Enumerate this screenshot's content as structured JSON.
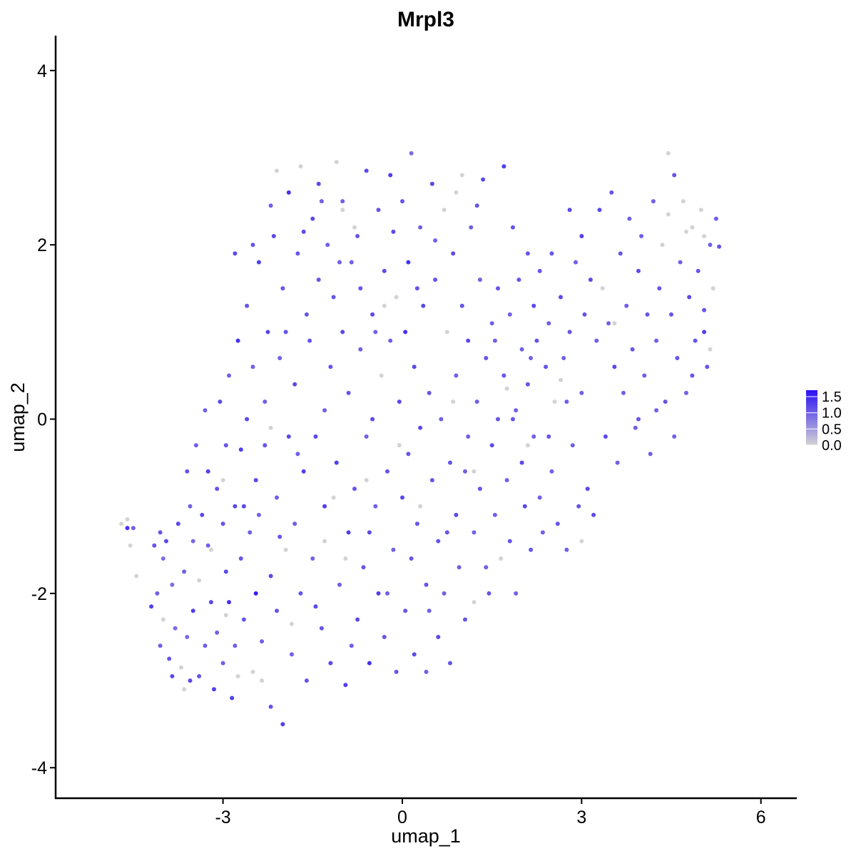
{
  "chart_data": {
    "type": "scatter",
    "title": "Mrpl3",
    "xlabel": "umap_1",
    "ylabel": "umap_2",
    "xlim": [
      -5.8,
      6.6
    ],
    "ylim": [
      -4.35,
      4.4
    ],
    "xticks": [
      -3,
      0,
      3,
      6
    ],
    "xtick_labels": [
      "-3",
      "0",
      "3",
      "6"
    ],
    "yticks": [
      -4,
      -2,
      0,
      2,
      4
    ],
    "ytick_labels": [
      "-4",
      "-2",
      "0",
      "2",
      "4"
    ],
    "grid": false,
    "legend_placement": "right",
    "color_scale": {
      "low": "#d3d3d3",
      "high": "#2a10f5",
      "min": 0,
      "max": 1.7,
      "ticks": [
        1.5,
        1.0,
        0.5,
        0.0
      ],
      "tick_labels": [
        "1.5",
        "1.0",
        "0.5",
        "0.0"
      ]
    },
    "points": [
      [
        -4.7,
        -1.2,
        0.0
      ],
      [
        -4.6,
        -1.25,
        1.4
      ],
      [
        -4.6,
        -1.15,
        0.0
      ],
      [
        -4.55,
        -1.45,
        0.0
      ],
      [
        -4.5,
        -1.25,
        1.0
      ],
      [
        -4.45,
        -1.8,
        0.0
      ],
      [
        -4.2,
        -2.15,
        1.3
      ],
      [
        -4.15,
        -1.45,
        1.1
      ],
      [
        -4.1,
        -2.0,
        1.0
      ],
      [
        -4.05,
        -2.6,
        1.0
      ],
      [
        -4.0,
        -1.6,
        0.9
      ],
      [
        -4.0,
        -2.3,
        0.0
      ],
      [
        -3.95,
        -1.4,
        1.2
      ],
      [
        -3.9,
        -2.75,
        1.1
      ],
      [
        -3.85,
        -1.9,
        0.9
      ],
      [
        -3.8,
        -2.4,
        0.9
      ],
      [
        -3.75,
        -1.2,
        1.2
      ],
      [
        -3.7,
        -2.85,
        0.0
      ],
      [
        -3.65,
        -1.75,
        1.0
      ],
      [
        -3.6,
        -2.5,
        0.9
      ],
      [
        -3.6,
        -0.6,
        1.1
      ],
      [
        -3.55,
        -3.0,
        1.2
      ],
      [
        -3.5,
        -1.4,
        0.9
      ],
      [
        -3.5,
        -2.2,
        1.3
      ],
      [
        -3.45,
        -0.3,
        1.0
      ],
      [
        -3.4,
        -1.85,
        0.0
      ],
      [
        -3.4,
        -2.95,
        1.1
      ],
      [
        -3.35,
        -1.1,
        1.2
      ],
      [
        -3.3,
        -2.6,
        1.0
      ],
      [
        -3.3,
        0.1,
        1.0
      ],
      [
        -3.25,
        -0.6,
        1.3
      ],
      [
        -3.2,
        -2.1,
        1.2
      ],
      [
        -3.2,
        -1.5,
        0.0
      ],
      [
        -3.15,
        -3.1,
        1.3
      ],
      [
        -3.1,
        -0.8,
        1.1
      ],
      [
        -3.1,
        -2.45,
        1.0
      ],
      [
        -3.05,
        0.2,
        1.2
      ],
      [
        -3.0,
        -1.2,
        1.1
      ],
      [
        -3.0,
        -2.8,
        1.0
      ],
      [
        -2.95,
        -1.75,
        1.2
      ],
      [
        -2.95,
        -0.3,
        1.1
      ],
      [
        -2.9,
        -2.1,
        1.4
      ],
      [
        -2.9,
        0.5,
        1.0
      ],
      [
        -2.85,
        -3.2,
        1.3
      ],
      [
        -2.8,
        -1.0,
        1.2
      ],
      [
        -2.8,
        -2.6,
        1.0
      ],
      [
        -2.75,
        0.9,
        1.4
      ],
      [
        -2.7,
        -0.35,
        1.3
      ],
      [
        -2.7,
        -1.6,
        1.1
      ],
      [
        -2.65,
        -2.3,
        1.1
      ],
      [
        -2.6,
        0.0,
        1.2
      ],
      [
        -2.6,
        1.3,
        1.1
      ],
      [
        -2.55,
        -1.3,
        1.0
      ],
      [
        -2.5,
        -2.9,
        0.0
      ],
      [
        -2.5,
        0.6,
        1.0
      ],
      [
        -2.45,
        -0.7,
        1.2
      ],
      [
        -2.45,
        -2.0,
        1.6
      ],
      [
        -2.4,
        1.8,
        1.3
      ],
      [
        -2.4,
        -1.1,
        1.0
      ],
      [
        -2.35,
        -2.55,
        1.0
      ],
      [
        -2.3,
        0.2,
        1.0
      ],
      [
        -2.3,
        -0.3,
        1.1
      ],
      [
        -2.25,
        1.0,
        1.2
      ],
      [
        -2.2,
        -1.8,
        1.2
      ],
      [
        -2.2,
        -3.3,
        1.1
      ],
      [
        -2.15,
        2.1,
        1.2
      ],
      [
        -2.1,
        -0.9,
        1.0
      ],
      [
        -2.1,
        -2.2,
        1.1
      ],
      [
        -2.05,
        0.7,
        1.0
      ],
      [
        -2.0,
        1.5,
        1.1
      ],
      [
        -2.0,
        -3.5,
        1.3
      ],
      [
        -1.95,
        -1.5,
        0.0
      ],
      [
        -1.9,
        -0.2,
        1.2
      ],
      [
        -1.9,
        2.6,
        1.4
      ],
      [
        -1.85,
        -2.7,
        1.0
      ],
      [
        -1.8,
        0.4,
        1.2
      ],
      [
        -1.8,
        -1.2,
        1.0
      ],
      [
        -1.75,
        1.9,
        1.1
      ],
      [
        -1.7,
        2.9,
        0.0
      ],
      [
        -1.7,
        -2.0,
        1.1
      ],
      [
        -1.65,
        -0.6,
        1.3
      ],
      [
        -1.6,
        1.2,
        1.1
      ],
      [
        -1.6,
        -3.0,
        1.1
      ],
      [
        -1.55,
        0.9,
        1.1
      ],
      [
        -1.5,
        2.3,
        1.2
      ],
      [
        -1.5,
        -1.6,
        1.0
      ],
      [
        -1.45,
        -0.2,
        1.2
      ],
      [
        -1.4,
        1.6,
        1.1
      ],
      [
        -1.4,
        2.7,
        1.2
      ],
      [
        -1.35,
        -2.4,
        1.1
      ],
      [
        -1.3,
        0.1,
        1.0
      ],
      [
        -1.3,
        -1.0,
        1.3
      ],
      [
        -1.25,
        2.0,
        1.0
      ],
      [
        -1.2,
        -2.8,
        1.2
      ],
      [
        -1.2,
        0.6,
        1.1
      ],
      [
        -1.15,
        1.4,
        1.1
      ],
      [
        -1.1,
        -0.5,
        1.3
      ],
      [
        -1.1,
        2.95,
        0.0
      ],
      [
        -1.05,
        -1.9,
        1.0
      ],
      [
        -1.0,
        1.0,
        1.2
      ],
      [
        -1.0,
        2.5,
        1.0
      ],
      [
        -0.95,
        -3.05,
        1.3
      ],
      [
        -0.9,
        0.3,
        1.1
      ],
      [
        -0.9,
        -1.3,
        1.3
      ],
      [
        -0.85,
        1.8,
        1.0
      ],
      [
        -0.8,
        -0.8,
        1.1
      ],
      [
        -0.8,
        2.2,
        0.0
      ],
      [
        -0.75,
        -2.3,
        1.2
      ],
      [
        -0.7,
        0.8,
        1.0
      ],
      [
        -0.7,
        1.5,
        1.1
      ],
      [
        -0.65,
        -1.7,
        1.1
      ],
      [
        -0.6,
        2.85,
        1.2
      ],
      [
        -0.6,
        -0.2,
        1.0
      ],
      [
        -0.55,
        -2.8,
        1.4
      ],
      [
        -0.5,
        1.2,
        1.2
      ],
      [
        -0.5,
        0.0,
        1.2
      ],
      [
        -0.45,
        -1.0,
        1.0
      ],
      [
        -0.4,
        2.4,
        1.1
      ],
      [
        -0.4,
        -2.0,
        1.3
      ],
      [
        -0.35,
        0.5,
        0.0
      ],
      [
        -0.3,
        1.7,
        1.2
      ],
      [
        -0.3,
        -2.5,
        1.1
      ],
      [
        -0.25,
        -0.6,
        1.1
      ],
      [
        -0.2,
        2.8,
        1.3
      ],
      [
        -0.2,
        0.9,
        1.0
      ],
      [
        -0.15,
        -1.5,
        1.0
      ],
      [
        -0.1,
        1.4,
        0.0
      ],
      [
        -0.1,
        -2.9,
        1.1
      ],
      [
        -0.05,
        0.2,
        1.2
      ],
      [
        0.0,
        2.5,
        1.1
      ],
      [
        0.0,
        -0.9,
        1.2
      ],
      [
        0.05,
        -2.2,
        1.1
      ],
      [
        0.05,
        1.0,
        1.4
      ],
      [
        0.1,
        1.8,
        1.4
      ],
      [
        0.1,
        -0.4,
        1.1
      ],
      [
        0.15,
        3.05,
        0.9
      ],
      [
        0.2,
        -2.7,
        1.2
      ],
      [
        0.2,
        0.6,
        1.2
      ],
      [
        0.25,
        -1.2,
        1.1
      ],
      [
        0.3,
        2.2,
        1.0
      ],
      [
        0.3,
        -0.1,
        1.2
      ],
      [
        0.35,
        1.3,
        1.2
      ],
      [
        0.4,
        -1.9,
        1.1
      ],
      [
        0.4,
        -2.9,
        1.0
      ],
      [
        0.45,
        0.3,
        1.1
      ],
      [
        0.5,
        2.7,
        1.2
      ],
      [
        0.5,
        -0.7,
        1.1
      ],
      [
        0.55,
        1.6,
        1.1
      ],
      [
        0.6,
        -1.4,
        1.1
      ],
      [
        0.6,
        -2.5,
        1.2
      ],
      [
        0.65,
        0.0,
        1.0
      ],
      [
        0.7,
        2.4,
        0.0
      ],
      [
        0.7,
        -2.0,
        1.0
      ],
      [
        0.75,
        1.0,
        0.0
      ],
      [
        0.8,
        -0.5,
        1.1
      ],
      [
        0.8,
        -2.8,
        1.1
      ],
      [
        0.85,
        1.9,
        1.2
      ],
      [
        0.9,
        0.5,
        1.0
      ],
      [
        0.9,
        -1.1,
        1.2
      ],
      [
        0.95,
        -1.7,
        1.0
      ],
      [
        1.0,
        2.8,
        0.0
      ],
      [
        1.0,
        1.3,
        1.1
      ],
      [
        1.05,
        -2.3,
        1.1
      ],
      [
        1.1,
        -0.2,
        1.0
      ],
      [
        1.1,
        0.9,
        1.2
      ],
      [
        1.15,
        2.2,
        1.0
      ],
      [
        1.2,
        -1.3,
        1.0
      ],
      [
        1.2,
        -2.1,
        0.0
      ],
      [
        1.25,
        0.2,
        1.0
      ],
      [
        1.3,
        1.6,
        1.0
      ],
      [
        1.3,
        -0.8,
        1.1
      ],
      [
        1.35,
        2.75,
        1.2
      ],
      [
        1.4,
        -1.7,
        1.0
      ],
      [
        1.4,
        0.7,
        1.1
      ],
      [
        1.45,
        -2.0,
        1.1
      ],
      [
        1.5,
        1.1,
        1.0
      ],
      [
        1.5,
        -0.3,
        1.2
      ],
      [
        1.55,
        -1.1,
        1.0
      ],
      [
        1.6,
        1.5,
        1.1
      ],
      [
        1.6,
        0.0,
        1.1
      ],
      [
        1.65,
        -1.6,
        0.0
      ],
      [
        1.7,
        2.9,
        1.3
      ],
      [
        1.7,
        0.5,
        1.1
      ],
      [
        1.75,
        -0.7,
        1.0
      ],
      [
        1.8,
        1.2,
        1.0
      ],
      [
        1.8,
        -1.4,
        1.1
      ],
      [
        1.85,
        2.2,
        1.1
      ],
      [
        1.9,
        0.1,
        1.0
      ],
      [
        1.9,
        -2.0,
        1.0
      ],
      [
        1.95,
        1.6,
        1.1
      ],
      [
        2.0,
        -0.5,
        1.2
      ],
      [
        2.0,
        0.8,
        1.0
      ],
      [
        2.05,
        -1.0,
        1.2
      ],
      [
        2.1,
        1.9,
        1.1
      ],
      [
        2.1,
        0.4,
        1.1
      ],
      [
        2.15,
        -1.5,
        1.1
      ],
      [
        2.2,
        1.3,
        1.2
      ],
      [
        2.2,
        -0.2,
        1.0
      ],
      [
        2.25,
        0.9,
        1.1
      ],
      [
        2.3,
        -0.9,
        1.0
      ],
      [
        2.3,
        1.7,
        1.1
      ],
      [
        2.35,
        -1.3,
        1.0
      ],
      [
        2.4,
        0.6,
        1.1
      ],
      [
        2.45,
        1.1,
        1.0
      ],
      [
        2.5,
        -0.6,
        1.0
      ],
      [
        2.5,
        1.9,
        1.1
      ],
      [
        2.55,
        0.2,
        0.0
      ],
      [
        2.6,
        -1.2,
        1.1
      ],
      [
        2.65,
        1.4,
        1.2
      ],
      [
        2.7,
        0.7,
        1.0
      ],
      [
        2.75,
        -1.5,
        1.0
      ],
      [
        2.8,
        2.4,
        1.2
      ],
      [
        2.8,
        1.0,
        1.1
      ],
      [
        2.85,
        -0.3,
        1.0
      ],
      [
        2.9,
        1.8,
        1.0
      ],
      [
        2.95,
        -1.0,
        1.1
      ],
      [
        3.0,
        0.3,
        1.0
      ],
      [
        3.0,
        2.1,
        1.3
      ],
      [
        3.05,
        1.2,
        1.1
      ],
      [
        3.1,
        -0.8,
        1.2
      ],
      [
        3.15,
        1.6,
        1.2
      ],
      [
        3.2,
        -1.1,
        1.2
      ],
      [
        3.25,
        0.9,
        1.0
      ],
      [
        3.3,
        2.4,
        1.2
      ],
      [
        3.35,
        1.5,
        0.0
      ],
      [
        3.4,
        -0.2,
        1.2
      ],
      [
        3.45,
        1.1,
        1.0
      ],
      [
        3.5,
        2.6,
        1.1
      ],
      [
        3.55,
        0.6,
        1.2
      ],
      [
        3.6,
        -0.5,
        1.0
      ],
      [
        3.65,
        1.9,
        1.1
      ],
      [
        3.7,
        0.3,
        1.0
      ],
      [
        3.75,
        1.3,
        1.0
      ],
      [
        3.8,
        2.3,
        1.0
      ],
      [
        3.85,
        0.8,
        1.1
      ],
      [
        3.9,
        -0.1,
        1.0
      ],
      [
        3.95,
        1.7,
        1.2
      ],
      [
        4.0,
        2.1,
        1.0
      ],
      [
        4.05,
        0.5,
        1.0
      ],
      [
        4.1,
        1.2,
        1.1
      ],
      [
        4.15,
        -0.4,
        1.0
      ],
      [
        4.2,
        2.5,
        1.0
      ],
      [
        4.25,
        0.9,
        1.0
      ],
      [
        4.3,
        1.5,
        1.1
      ],
      [
        4.35,
        2.0,
        0.0
      ],
      [
        4.4,
        0.2,
        1.1
      ],
      [
        4.45,
        3.05,
        0.0
      ],
      [
        4.5,
        1.2,
        1.1
      ],
      [
        4.55,
        2.8,
        1.1
      ],
      [
        4.6,
        0.7,
        1.1
      ],
      [
        4.65,
        1.8,
        1.0
      ],
      [
        4.7,
        2.5,
        0.0
      ],
      [
        4.75,
        0.3,
        1.0
      ],
      [
        4.8,
        1.4,
        1.2
      ],
      [
        4.85,
        2.2,
        0.0
      ],
      [
        4.9,
        0.9,
        1.1
      ],
      [
        4.95,
        1.7,
        1.1
      ],
      [
        5.0,
        2.4,
        0.0
      ],
      [
        5.05,
        1.0,
        1.3
      ],
      [
        5.1,
        0.6,
        1.1
      ],
      [
        5.15,
        2.0,
        1.0
      ],
      [
        5.2,
        1.5,
        0.0
      ],
      [
        5.25,
        2.3,
        1.0
      ],
      [
        5.3,
        1.98,
        1.1
      ],
      [
        -4.05,
        -1.3,
        1.1
      ],
      [
        -3.85,
        -2.95,
        1.2
      ],
      [
        -3.55,
        -1.0,
        1.0
      ],
      [
        -3.25,
        -1.45,
        1.0
      ],
      [
        -2.95,
        -2.25,
        0.0
      ],
      [
        -2.65,
        -1.0,
        1.2
      ],
      [
        -2.35,
        -3.0,
        0.0
      ],
      [
        -2.05,
        -1.35,
        1.1
      ],
      [
        -1.75,
        -0.4,
        1.0
      ],
      [
        -1.45,
        -2.15,
        1.2
      ],
      [
        -1.15,
        -0.9,
        0.0
      ],
      [
        -0.85,
        -2.6,
        1.0
      ],
      [
        -0.55,
        -1.3,
        1.2
      ],
      [
        -0.25,
        -2.0,
        1.0
      ],
      [
        0.15,
        -1.6,
        1.1
      ],
      [
        0.45,
        -2.2,
        1.0
      ],
      [
        0.75,
        -1.3,
        1.1
      ],
      [
        1.05,
        -0.6,
        1.0
      ],
      [
        -2.8,
        1.9,
        1.2
      ],
      [
        -2.5,
        2.0,
        1.1
      ],
      [
        -2.2,
        2.45,
        1.0
      ],
      [
        -1.95,
        1.0,
        1.1
      ],
      [
        -1.65,
        2.15,
        1.2
      ],
      [
        -1.35,
        2.5,
        1.0
      ],
      [
        -1.05,
        1.8,
        1.0
      ],
      [
        -0.75,
        2.1,
        1.1
      ],
      [
        -0.45,
        1.0,
        1.0
      ],
      [
        -0.15,
        2.15,
        1.2
      ],
      [
        0.25,
        1.5,
        1.1
      ],
      [
        0.55,
        2.05,
        1.0
      ],
      [
        1.25,
        2.45,
        1.1
      ],
      [
        1.55,
        0.9,
        1.0
      ],
      [
        1.85,
        0.0,
        1.1
      ],
      [
        2.15,
        0.7,
        1.0
      ],
      [
        2.45,
        -0.2,
        1.1
      ],
      [
        2.75,
        0.2,
        1.0
      ],
      [
        3.95,
        0.0,
        1.1
      ],
      [
        4.25,
        0.1,
        1.0
      ],
      [
        4.55,
        -0.2,
        1.0
      ],
      [
        4.85,
        0.5,
        1.1
      ],
      [
        5.15,
        0.8,
        0.0
      ],
      [
        5.05,
        1.25,
        1.1
      ],
      [
        -3.65,
        -3.1,
        0.0
      ],
      [
        -2.75,
        -2.95,
        0.0
      ],
      [
        -1.85,
        -2.35,
        0.0
      ],
      [
        -0.95,
        -1.6,
        0.0
      ],
      [
        -0.05,
        -0.3,
        0.0
      ],
      [
        0.85,
        0.2,
        0.0
      ],
      [
        1.75,
        0.35,
        0.0
      ],
      [
        2.65,
        0.45,
        0.0
      ],
      [
        3.55,
        1.1,
        0.0
      ],
      [
        4.45,
        2.35,
        0.0
      ],
      [
        4.75,
        2.15,
        0.0
      ],
      [
        5.05,
        2.1,
        0.0
      ],
      [
        -2.1,
        2.85,
        0.0
      ],
      [
        -1.0,
        2.4,
        0.0
      ],
      [
        -0.3,
        1.3,
        0.0
      ],
      [
        0.9,
        2.6,
        0.0
      ],
      [
        2.1,
        -0.3,
        0.0
      ],
      [
        3.0,
        -1.4,
        0.0
      ],
      [
        -3.0,
        -0.7,
        0.0
      ],
      [
        -2.2,
        -0.1,
        0.0
      ],
      [
        -1.3,
        -1.4,
        0.0
      ],
      [
        -0.6,
        -0.7,
        0.0
      ],
      [
        0.3,
        -1.0,
        0.0
      ],
      [
        1.2,
        -0.6,
        0.0
      ]
    ]
  }
}
